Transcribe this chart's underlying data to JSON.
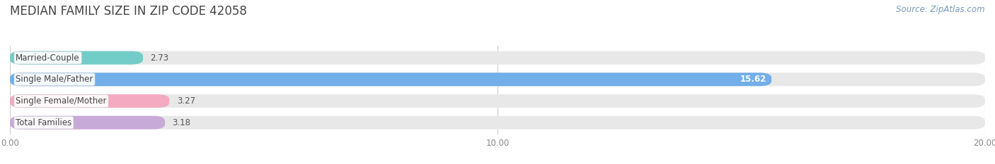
{
  "title": "Median Family Size in Zip Code 42058",
  "title_display": "MEDIAN FAMILY SIZE IN ZIP CODE 42058",
  "source": "Source: ZipAtlas.com",
  "categories": [
    "Married-Couple",
    "Single Male/Father",
    "Single Female/Mother",
    "Total Families"
  ],
  "values": [
    2.73,
    15.62,
    3.27,
    3.18
  ],
  "bar_colors": [
    "#72cdc8",
    "#72aee8",
    "#f4aac0",
    "#c8aad8"
  ],
  "value_inside": [
    false,
    true,
    false,
    false
  ],
  "bar_bg_color": "#e8e8e8",
  "xlim": [
    0,
    20
  ],
  "xticks": [
    0.0,
    10.0,
    20.0
  ],
  "xtick_labels": [
    "0.00",
    "10.00",
    "20.00"
  ],
  "background_color": "#ffffff",
  "title_fontsize": 12,
  "label_fontsize": 8.5,
  "value_fontsize": 8.5,
  "source_fontsize": 8.5
}
